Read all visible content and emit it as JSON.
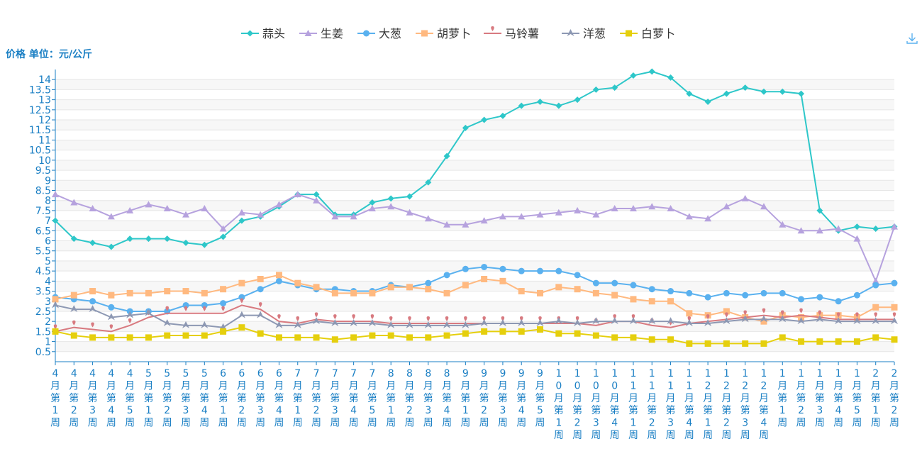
{
  "chart_data": {
    "type": "line",
    "ylabel": "价格 单位：元/公斤",
    "ylim": [
      0,
      14.5
    ],
    "yticks": [
      0.5,
      1,
      1.5,
      2,
      2.5,
      3,
      3.5,
      4,
      4.5,
      5,
      5.5,
      6,
      6.5,
      7,
      7.5,
      8,
      8.5,
      9,
      9.5,
      10,
      10.5,
      11,
      11.5,
      12,
      12.5,
      13,
      13.5,
      14
    ],
    "legend_position": "top-center",
    "categories": [
      "4月第1周",
      "4月第2周",
      "4月第3周",
      "4月第4周",
      "4月第5周",
      "5月第1周",
      "5月第2周",
      "5月第3周",
      "5月第4周",
      "6月第1周",
      "6月第2周",
      "6月第3周",
      "6月第4周",
      "7月第1周",
      "7月第2周",
      "7月第3周",
      "7月第4周",
      "7月第5周",
      "8月第1周",
      "8月第2周",
      "8月第3周",
      "8月第4周",
      "9月第1周",
      "9月第2周",
      "9月第3周",
      "9月第4周",
      "9月第5周",
      "10月第1周",
      "10月第2周",
      "10月第3周",
      "10月第4周",
      "11月第1周",
      "11月第2周",
      "11月第3周",
      "11月第4周",
      "12月第1周",
      "12月第2周",
      "12月第3周",
      "12月第4周",
      "1月第1周",
      "1月第2周",
      "1月第3周",
      "1月第4周",
      "1月第5周",
      "2月第1周",
      "2月第2周"
    ],
    "series": [
      {
        "name": "蒜头",
        "color": "#2ec7c9",
        "marker": "diamond",
        "values": [
          7.0,
          6.1,
          5.9,
          5.7,
          6.1,
          6.1,
          6.1,
          5.9,
          5.8,
          6.2,
          7.0,
          7.2,
          7.7,
          8.3,
          8.3,
          7.3,
          7.3,
          7.9,
          8.1,
          8.2,
          8.9,
          10.2,
          11.6,
          12.0,
          12.2,
          12.7,
          12.9,
          12.7,
          13.0,
          13.5,
          13.6,
          14.2,
          14.4,
          14.1,
          13.3,
          12.9,
          13.3,
          13.6,
          13.4,
          13.4,
          13.3,
          7.5,
          6.5,
          6.7,
          6.6,
          6.7
        ]
      },
      {
        "name": "生姜",
        "color": "#b6a2de",
        "marker": "triangle",
        "values": [
          8.3,
          7.9,
          7.6,
          7.2,
          7.5,
          7.8,
          7.6,
          7.3,
          7.6,
          6.6,
          7.4,
          7.3,
          7.8,
          8.3,
          8.0,
          7.2,
          7.2,
          7.6,
          7.7,
          7.4,
          7.1,
          6.8,
          6.8,
          7.0,
          7.2,
          7.2,
          7.3,
          7.4,
          7.5,
          7.3,
          7.6,
          7.6,
          7.7,
          7.6,
          7.2,
          7.1,
          7.7,
          8.1,
          7.7,
          6.8,
          6.5,
          6.5,
          6.6,
          6.1,
          4.0,
          6.7
        ]
      },
      {
        "name": "大葱",
        "color": "#5ab1ef",
        "marker": "circle",
        "values": [
          3.2,
          3.1,
          3.0,
          2.7,
          2.5,
          2.5,
          2.5,
          2.8,
          2.8,
          2.9,
          3.2,
          3.6,
          4.0,
          3.8,
          3.6,
          3.6,
          3.5,
          3.5,
          3.8,
          3.7,
          3.9,
          4.3,
          4.6,
          4.7,
          4.6,
          4.5,
          4.5,
          4.5,
          4.3,
          3.9,
          3.9,
          3.8,
          3.6,
          3.5,
          3.4,
          3.2,
          3.4,
          3.3,
          3.4,
          3.4,
          3.1,
          3.2,
          3.0,
          3.3,
          3.8,
          3.9
        ]
      },
      {
        "name": "胡萝卜",
        "color": "#ffb980",
        "marker": "square",
        "values": [
          3.1,
          3.3,
          3.5,
          3.3,
          3.4,
          3.4,
          3.5,
          3.5,
          3.4,
          3.6,
          3.9,
          4.1,
          4.3,
          3.9,
          3.7,
          3.4,
          3.4,
          3.4,
          3.7,
          3.7,
          3.6,
          3.4,
          3.8,
          4.1,
          4.0,
          3.5,
          3.4,
          3.7,
          3.6,
          3.4,
          3.3,
          3.1,
          3.0,
          3.0,
          2.4,
          2.3,
          2.5,
          2.2,
          2.0,
          2.3,
          2.2,
          2.3,
          2.3,
          2.2,
          2.7,
          2.7
        ]
      },
      {
        "name": "马铃薯",
        "color": "#d87a80",
        "marker": "pin",
        "values": [
          1.5,
          1.7,
          1.6,
          1.5,
          1.8,
          2.2,
          2.4,
          2.4,
          2.4,
          2.4,
          2.8,
          2.6,
          2.0,
          1.9,
          2.1,
          2.0,
          2.0,
          2.0,
          1.9,
          1.9,
          1.9,
          1.9,
          1.9,
          1.9,
          1.9,
          1.9,
          1.9,
          1.9,
          1.9,
          1.8,
          2.0,
          2.0,
          1.8,
          1.7,
          1.9,
          2.0,
          2.1,
          2.2,
          2.3,
          2.2,
          2.3,
          2.2,
          2.1,
          2.1,
          2.1,
          2.1
        ]
      },
      {
        "name": "洋葱",
        "color": "#8d98b3",
        "marker": "arrow",
        "values": [
          2.8,
          2.6,
          2.6,
          2.2,
          2.3,
          2.4,
          1.9,
          1.8,
          1.8,
          1.7,
          2.3,
          2.3,
          1.8,
          1.8,
          2.0,
          1.9,
          1.9,
          1.9,
          1.8,
          1.8,
          1.8,
          1.8,
          1.8,
          1.9,
          1.9,
          1.9,
          1.9,
          2.0,
          1.9,
          2.0,
          2.0,
          2.0,
          2.0,
          2.0,
          1.9,
          1.9,
          2.0,
          2.1,
          2.1,
          2.1,
          2.0,
          2.1,
          2.0,
          2.0,
          2.0,
          2.0
        ]
      },
      {
        "name": "白萝卜",
        "color": "#e5cf0d",
        "marker": "square",
        "values": [
          1.5,
          1.3,
          1.2,
          1.2,
          1.2,
          1.2,
          1.3,
          1.3,
          1.3,
          1.5,
          1.7,
          1.4,
          1.2,
          1.2,
          1.2,
          1.1,
          1.2,
          1.3,
          1.3,
          1.2,
          1.2,
          1.3,
          1.4,
          1.5,
          1.5,
          1.5,
          1.6,
          1.4,
          1.4,
          1.3,
          1.2,
          1.2,
          1.1,
          1.1,
          0.9,
          0.9,
          0.9,
          0.9,
          0.9,
          1.2,
          1.0,
          1.0,
          1.0,
          1.0,
          1.2,
          1.1
        ]
      }
    ]
  },
  "toolbox": {
    "download_icon": "download-icon",
    "download_color": "#5ab1ef"
  },
  "colors": {
    "axis": "#1a7fc4",
    "grid": "#e6e6e6",
    "band": "#f7f7f7"
  }
}
